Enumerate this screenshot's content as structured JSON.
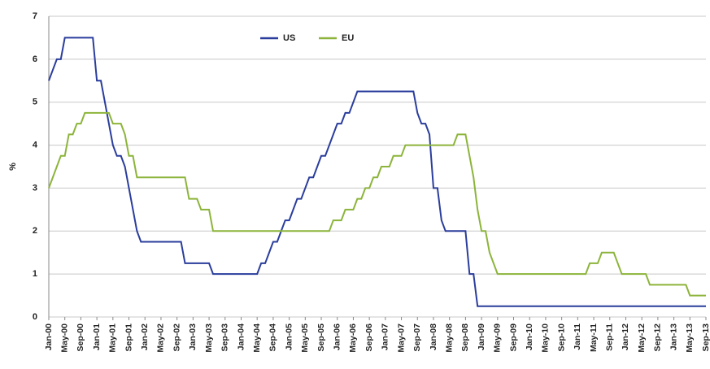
{
  "chart_data": {
    "type": "line",
    "y_label": "%",
    "categories": [
      "Jan-00",
      null,
      null,
      null,
      "May-00",
      null,
      null,
      null,
      "Sep-00",
      null,
      null,
      null,
      "Jan-01",
      null,
      null,
      null,
      "May-01",
      null,
      null,
      null,
      "Sep-01",
      null,
      null,
      null,
      "Jan-02",
      null,
      null,
      null,
      "May-02",
      null,
      null,
      null,
      "Sep-02",
      null,
      null,
      null,
      "Jan-03",
      null,
      null,
      null,
      "May-03",
      null,
      null,
      null,
      "Sep-03",
      null,
      null,
      null,
      "Jan-04",
      null,
      null,
      null,
      "May-04",
      null,
      null,
      null,
      "Sep-04",
      null,
      null,
      null,
      "Jan-05",
      null,
      null,
      null,
      "May-05",
      null,
      null,
      null,
      "Sep-05",
      null,
      null,
      null,
      "Jan-06",
      null,
      null,
      null,
      "May-06",
      null,
      null,
      null,
      "Sep-06",
      null,
      null,
      null,
      "Jan-07",
      null,
      null,
      null,
      "May-07",
      null,
      null,
      null,
      "Sep-07",
      null,
      null,
      null,
      "Jan-08",
      null,
      null,
      null,
      "May-08",
      null,
      null,
      null,
      "Sep-08",
      null,
      null,
      null,
      "Jan-09",
      null,
      null,
      null,
      "May-09",
      null,
      null,
      null,
      "Sep-09",
      null,
      null,
      null,
      "Jan-10",
      null,
      null,
      null,
      "May-10",
      null,
      null,
      null,
      "Sep-10",
      null,
      null,
      null,
      "Jan-11",
      null,
      null,
      null,
      "May-11",
      null,
      null,
      null,
      "Sep-11",
      null,
      null,
      null,
      "Jan-12",
      null,
      null,
      null,
      "May-12",
      null,
      null,
      null,
      "Sep-12",
      null,
      null,
      null,
      "Jan-13",
      null,
      null,
      null,
      "May-13",
      null,
      null,
      null,
      "Sep-13"
    ],
    "series": [
      {
        "name": "US",
        "color": "#2a3d9c",
        "values": [
          5.5,
          5.75,
          6,
          6,
          6.5,
          6.5,
          6.5,
          6.5,
          6.5,
          6.5,
          6.5,
          6.5,
          5.5,
          5.5,
          5,
          4.5,
          4,
          3.75,
          3.75,
          3.5,
          3,
          2.5,
          2,
          1.75,
          1.75,
          1.75,
          1.75,
          1.75,
          1.75,
          1.75,
          1.75,
          1.75,
          1.75,
          1.75,
          1.25,
          1.25,
          1.25,
          1.25,
          1.25,
          1.25,
          1.25,
          1,
          1,
          1,
          1,
          1,
          1,
          1,
          1,
          1,
          1,
          1,
          1,
          1.25,
          1.25,
          1.5,
          1.75,
          1.75,
          2,
          2.25,
          2.25,
          2.5,
          2.75,
          2.75,
          3,
          3.25,
          3.25,
          3.5,
          3.75,
          3.75,
          4,
          4.25,
          4.5,
          4.5,
          4.75,
          4.75,
          5,
          5.25,
          5.25,
          5.25,
          5.25,
          5.25,
          5.25,
          5.25,
          5.25,
          5.25,
          5.25,
          5.25,
          5.25,
          5.25,
          5.25,
          5.25,
          4.75,
          4.5,
          4.5,
          4.25,
          3,
          3,
          2.25,
          2,
          2,
          2,
          2,
          2,
          2,
          1,
          1,
          0.25,
          0.25,
          0.25,
          0.25,
          0.25,
          0.25,
          0.25,
          0.25,
          0.25,
          0.25,
          0.25,
          0.25,
          0.25,
          0.25,
          0.25,
          0.25,
          0.25,
          0.25,
          0.25,
          0.25,
          0.25,
          0.25,
          0.25,
          0.25,
          0.25,
          0.25,
          0.25,
          0.25,
          0.25,
          0.25,
          0.25,
          0.25,
          0.25,
          0.25,
          0.25,
          0.25,
          0.25,
          0.25,
          0.25,
          0.25,
          0.25,
          0.25,
          0.25,
          0.25,
          0.25,
          0.25,
          0.25,
          0.25,
          0.25,
          0.25,
          0.25,
          0.25,
          0.25,
          0.25,
          0.25,
          0.25,
          0.25,
          0.25
        ]
      },
      {
        "name": "EU",
        "color": "#8cb43a",
        "values": [
          3,
          3.25,
          3.5,
          3.75,
          3.75,
          4.25,
          4.25,
          4.5,
          4.5,
          4.75,
          4.75,
          4.75,
          4.75,
          4.75,
          4.75,
          4.75,
          4.5,
          4.5,
          4.5,
          4.25,
          3.75,
          3.75,
          3.25,
          3.25,
          3.25,
          3.25,
          3.25,
          3.25,
          3.25,
          3.25,
          3.25,
          3.25,
          3.25,
          3.25,
          3.25,
          2.75,
          2.75,
          2.75,
          2.5,
          2.5,
          2.5,
          2,
          2,
          2,
          2,
          2,
          2,
          2,
          2,
          2,
          2,
          2,
          2,
          2,
          2,
          2,
          2,
          2,
          2,
          2,
          2,
          2,
          2,
          2,
          2,
          2,
          2,
          2,
          2,
          2,
          2,
          2.25,
          2.25,
          2.25,
          2.5,
          2.5,
          2.5,
          2.75,
          2.75,
          3,
          3,
          3.25,
          3.25,
          3.5,
          3.5,
          3.5,
          3.75,
          3.75,
          3.75,
          4,
          4,
          4,
          4,
          4,
          4,
          4,
          4,
          4,
          4,
          4,
          4,
          4,
          4.25,
          4.25,
          4.25,
          3.75,
          3.25,
          2.5,
          2,
          2,
          1.5,
          1.25,
          1,
          1,
          1,
          1,
          1,
          1,
          1,
          1,
          1,
          1,
          1,
          1,
          1,
          1,
          1,
          1,
          1,
          1,
          1,
          1,
          1,
          1,
          1,
          1.25,
          1.25,
          1.25,
          1.5,
          1.5,
          1.5,
          1.5,
          1.25,
          1,
          1,
          1,
          1,
          1,
          1,
          1,
          0.75,
          0.75,
          0.75,
          0.75,
          0.75,
          0.75,
          0.75,
          0.75,
          0.75,
          0.75,
          0.5,
          0.5,
          0.5,
          0.5,
          0.5
        ]
      }
    ],
    "ylim": [
      0,
      7
    ],
    "yticks": [
      0,
      1,
      2,
      3,
      4,
      5,
      6,
      7
    ],
    "grid": true,
    "legend": "top"
  }
}
